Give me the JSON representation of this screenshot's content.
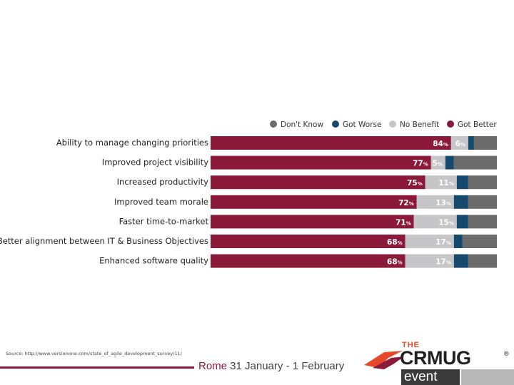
{
  "chart_data": {
    "type": "bar",
    "stacked": true,
    "orientation": "horizontal",
    "categories": [
      "Ability to manage changing priorities",
      "Improved project visibility",
      "Increased productivity",
      "Improved team morale",
      "Faster time-to-market",
      "Better alignment between IT & Business Objectives",
      "Enhanced software quality"
    ],
    "series": [
      {
        "name": "Got Better",
        "color": "#8b1a3a",
        "values": [
          84,
          77,
          75,
          72,
          71,
          68,
          68
        ]
      },
      {
        "name": "No Benefit",
        "color": "#c6c6c8",
        "values": [
          6,
          5,
          11,
          13,
          15,
          17,
          17
        ]
      },
      {
        "name": "Got Worse",
        "color": "#154a6e",
        "values": [
          2,
          3,
          4,
          5,
          4,
          3,
          5
        ]
      },
      {
        "name": "Don't Know",
        "color": "#6b6b6b",
        "values": [
          8,
          15,
          10,
          10,
          10,
          12,
          10
        ]
      }
    ],
    "labeled_series": [
      "Got Better",
      "No Benefit"
    ],
    "value_suffix": "%",
    "legend_order": [
      "Don't Know",
      "Got Worse",
      "No Benefit",
      "Got Better"
    ],
    "legend_position": "top-right",
    "xlim": [
      0,
      100
    ],
    "grid": false
  },
  "footer": {
    "source": "Source: http://www.versionone.com/state_of_agile_development_survey/11/",
    "event_city": "Rome",
    "event_dates": " 31 January - 1 February"
  },
  "logo": {
    "the": "THE",
    "name": "CRMUG",
    "registered": "®",
    "event": "event"
  }
}
